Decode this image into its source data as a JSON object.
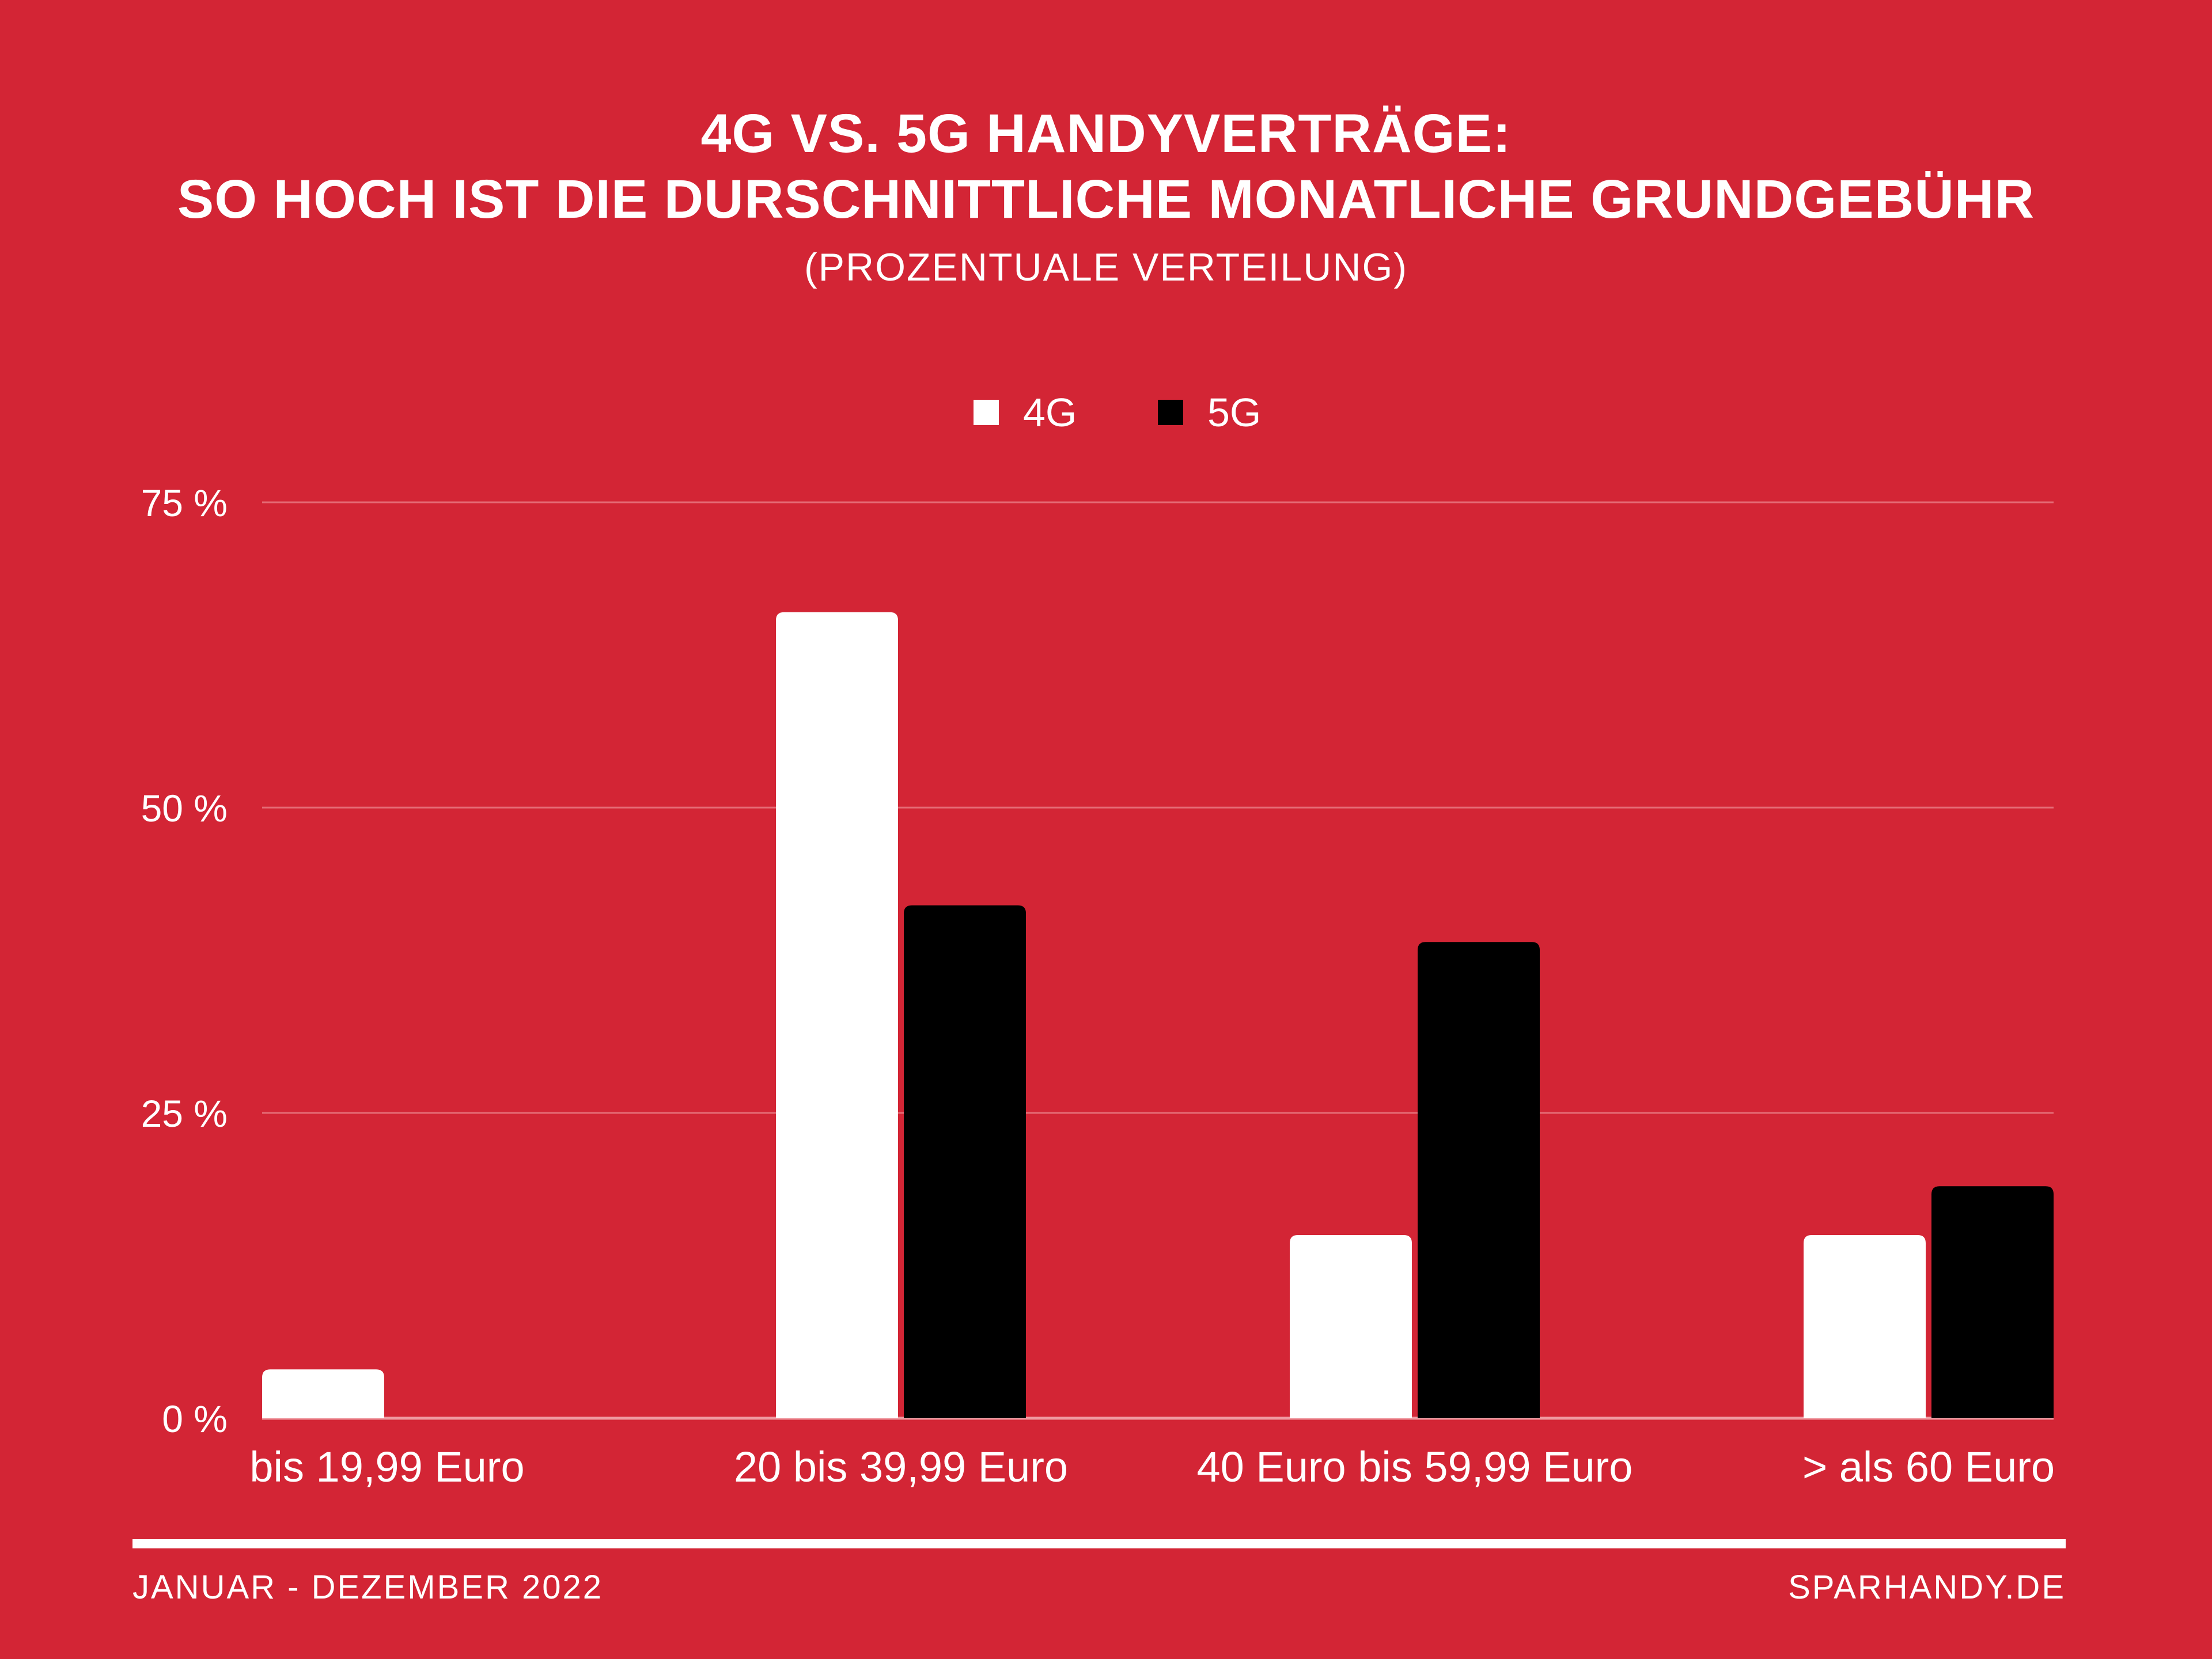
{
  "header": {
    "title_line1": "4G VS.  5G HANDYVERTRÄGE:",
    "title_line2": "SO HOCH IST DIE DURSCHNITTLICHE MONATLICHE GRUNDGEBÜHR",
    "subtitle": "(PROZENTUALE VERTEILUNG)"
  },
  "footer": {
    "period": "JANUAR - DEZEMBER 2022",
    "source": "SPARHANDY.DE"
  },
  "colors": {
    "background": "#d32535",
    "series_4g": "#ffffff",
    "series_5g": "#000000",
    "grid": "#e46b75"
  },
  "chart_data": {
    "type": "bar",
    "categories": [
      "bis 19,99 Euro",
      "20 bis 39,99 Euro",
      "40 Euro bis 59,99 Euro",
      "> als 60 Euro"
    ],
    "series": [
      {
        "name": "4G",
        "values": [
          4,
          66,
          15,
          15
        ],
        "color": "#ffffff"
      },
      {
        "name": "5G",
        "values": [
          0,
          42,
          39,
          19
        ],
        "color": "#000000"
      }
    ],
    "title": "4G VS.  5G HANDYVERTRÄGE: SO HOCH IST DIE DURSCHNITTLICHE MONATLICHE GRUNDGEBÜHR",
    "subtitle": "(PROZENTUALE VERTEILUNG)",
    "xlabel": "",
    "ylabel": "",
    "ylim": [
      0,
      75
    ],
    "yticks": [
      0,
      25,
      50,
      75
    ],
    "ytick_labels": [
      "0 %",
      "25 %",
      "50 %",
      "75 %"
    ],
    "grid": true,
    "legend": "top-center"
  }
}
